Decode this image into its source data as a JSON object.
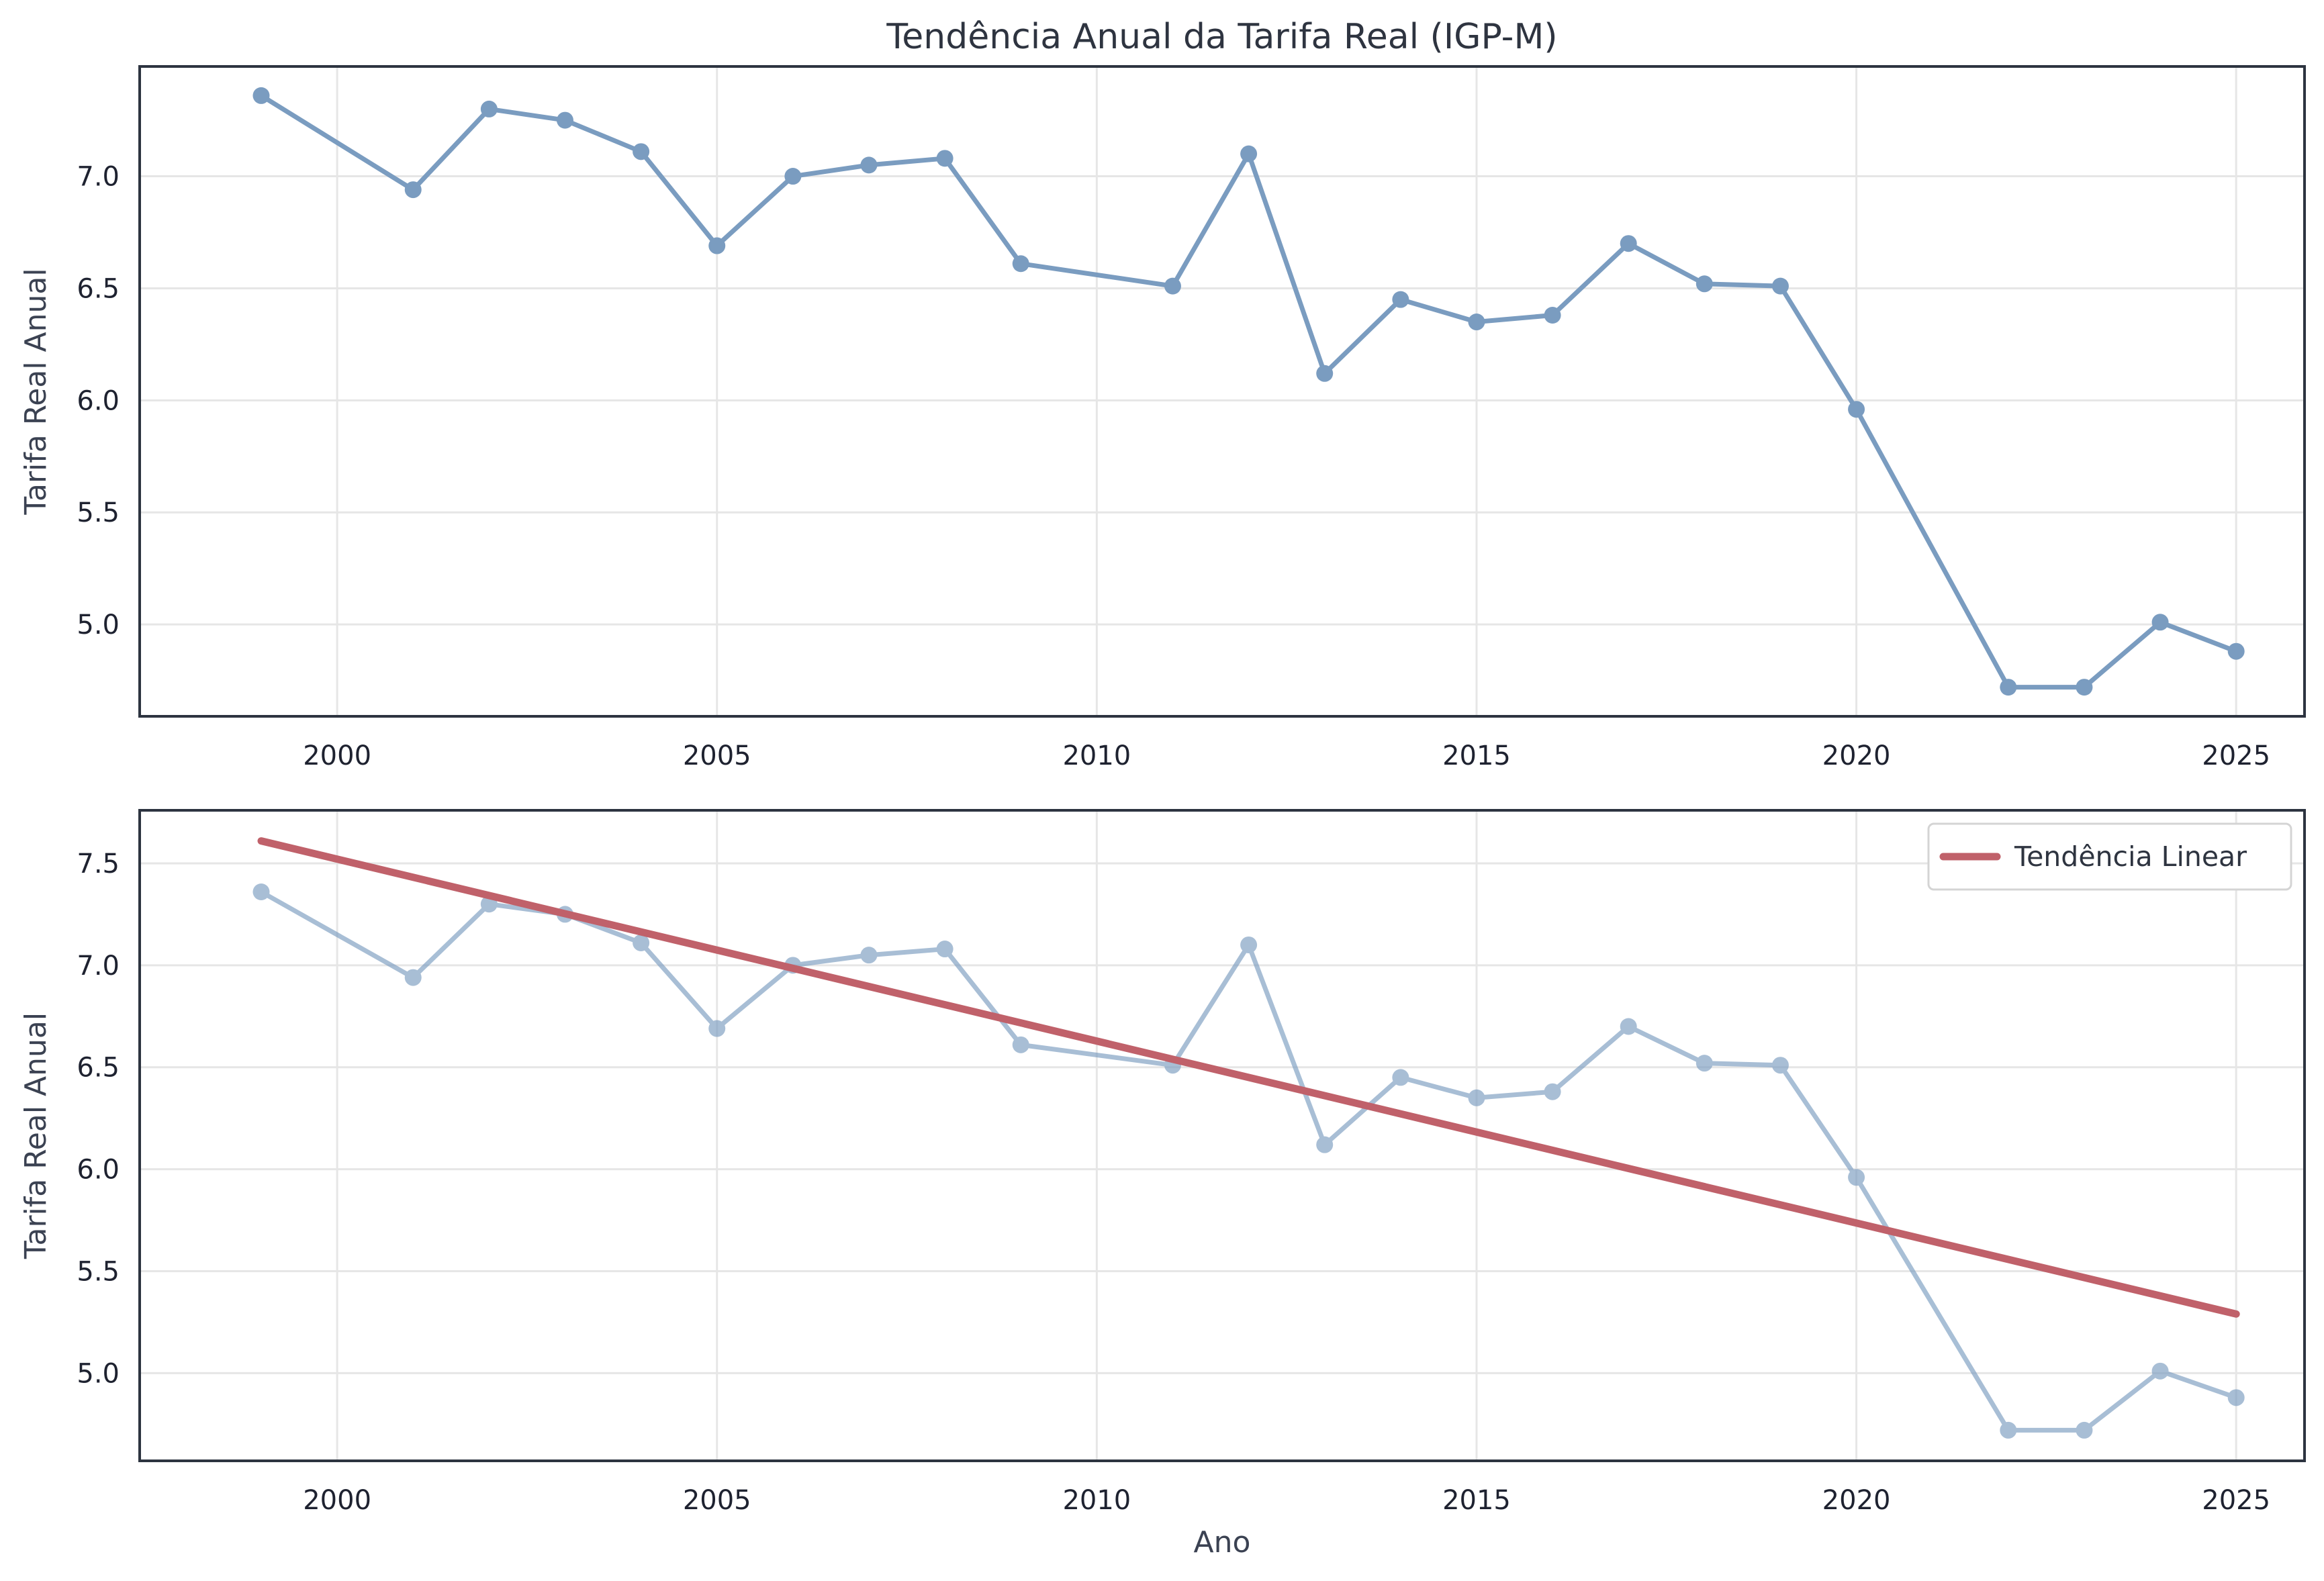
{
  "chart_data": [
    {
      "type": "line",
      "title": "Tendência Anual da Tarifa Real (IGP-M)",
      "xlabel": "",
      "ylabel": "Tarifa Real Anual",
      "xlim": [
        1997.4,
        2025.9
      ],
      "ylim": [
        4.59,
        7.49
      ],
      "xticks": [
        2000,
        2005,
        2010,
        2015,
        2020,
        2025
      ],
      "xtick_labels": [
        "2000",
        "2005",
        "2010",
        "2015",
        "2020",
        "2025"
      ],
      "yticks": [
        5.0,
        5.5,
        6.0,
        6.5,
        7.0
      ],
      "ytick_labels": [
        "5.0",
        "5.5",
        "6.0",
        "6.5",
        "7.0"
      ],
      "grid": true,
      "series": [
        {
          "x": [
            1999,
            2001,
            2002,
            2003,
            2004,
            2005,
            2006,
            2007,
            2008,
            2009,
            2011,
            2012,
            2013,
            2014,
            2015,
            2016,
            2017,
            2018,
            2019,
            2020,
            2022,
            2023,
            2024,
            2025
          ],
          "y": [
            7.36,
            6.94,
            7.3,
            7.25,
            7.11,
            6.69,
            7.0,
            7.05,
            7.08,
            6.61,
            6.51,
            7.1,
            6.12,
            6.45,
            6.35,
            6.38,
            6.7,
            6.52,
            6.51,
            5.96,
            4.72,
            4.72,
            5.01,
            4.88
          ],
          "color": "#7a9cc0",
          "alpha": 1.0,
          "markers": true
        }
      ]
    },
    {
      "type": "line",
      "title": "",
      "xlabel": "Ano",
      "ylabel": "Tarifa Real Anual",
      "xlim": [
        1997.4,
        2025.9
      ],
      "ylim": [
        4.57,
        7.76
      ],
      "xticks": [
        2000,
        2005,
        2010,
        2015,
        2020,
        2025
      ],
      "xtick_labels": [
        "2000",
        "2005",
        "2010",
        "2015",
        "2020",
        "2025"
      ],
      "yticks": [
        5.0,
        5.5,
        6.0,
        6.5,
        7.0,
        7.5
      ],
      "ytick_labels": [
        "5.0",
        "5.5",
        "6.0",
        "6.5",
        "7.0",
        "7.5"
      ],
      "grid": true,
      "legend": "top-right",
      "series": [
        {
          "x": [
            1999,
            2001,
            2002,
            2003,
            2004,
            2005,
            2006,
            2007,
            2008,
            2009,
            2011,
            2012,
            2013,
            2014,
            2015,
            2016,
            2017,
            2018,
            2019,
            2020,
            2022,
            2023,
            2024,
            2025
          ],
          "y": [
            7.36,
            6.94,
            7.3,
            7.25,
            7.11,
            6.69,
            7.0,
            7.05,
            7.08,
            6.61,
            6.51,
            7.1,
            6.12,
            6.45,
            6.35,
            6.38,
            6.7,
            6.52,
            6.51,
            5.96,
            4.72,
            4.72,
            5.01,
            4.88
          ],
          "color": "#7a9cc0",
          "alpha": 0.65,
          "markers": true
        },
        {
          "name": "Tendência Linear",
          "x": [
            1999,
            2025
          ],
          "y": [
            7.61,
            5.29
          ],
          "color": "#c0616a",
          "alpha": 1.0,
          "markers": false,
          "thick": true
        }
      ]
    }
  ]
}
